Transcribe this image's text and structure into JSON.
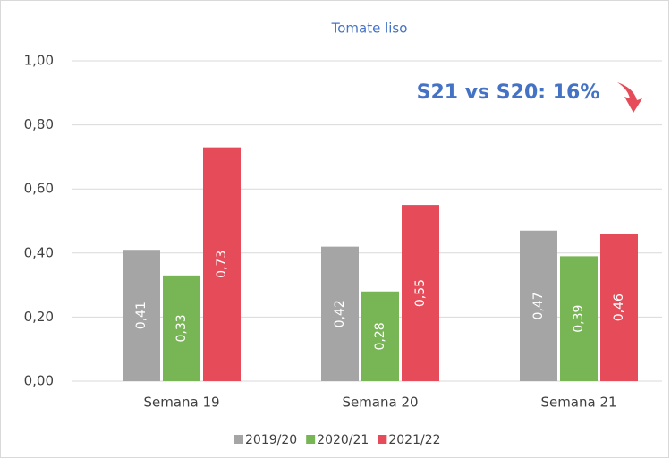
{
  "chart_data": {
    "type": "bar",
    "title": "Tomate liso",
    "annotation": "S21 vs S20: 16%",
    "categories": [
      "Semana 19",
      "Semana 20",
      "Semana 21"
    ],
    "series": [
      {
        "name": "2019/20",
        "color": "#a5a5a5",
        "values": [
          0.41,
          0.42,
          0.47
        ],
        "value_labels": [
          "0,41",
          "0,42",
          "0,47"
        ]
      },
      {
        "name": "2020/21",
        "color": "#78b655",
        "values": [
          0.33,
          0.28,
          0.39
        ],
        "value_labels": [
          "0,33",
          "0,28",
          "0,39"
        ]
      },
      {
        "name": "2021/22",
        "color": "#e54b58",
        "values": [
          0.73,
          0.55,
          0.46
        ],
        "value_labels": [
          "0,73",
          "0,55",
          "0,46"
        ]
      }
    ],
    "ylim": [
      0,
      1
    ],
    "yticks": [
      {
        "value": 0,
        "label": "0,00"
      },
      {
        "value": 0.2,
        "label": "0,20"
      },
      {
        "value": 0.4,
        "label": "0,40"
      },
      {
        "value": 0.6,
        "label": "0,60"
      },
      {
        "value": 0.8,
        "label": "0,80"
      },
      {
        "value": 1,
        "label": "1,00"
      }
    ],
    "grid": true,
    "legend": "bottom"
  }
}
